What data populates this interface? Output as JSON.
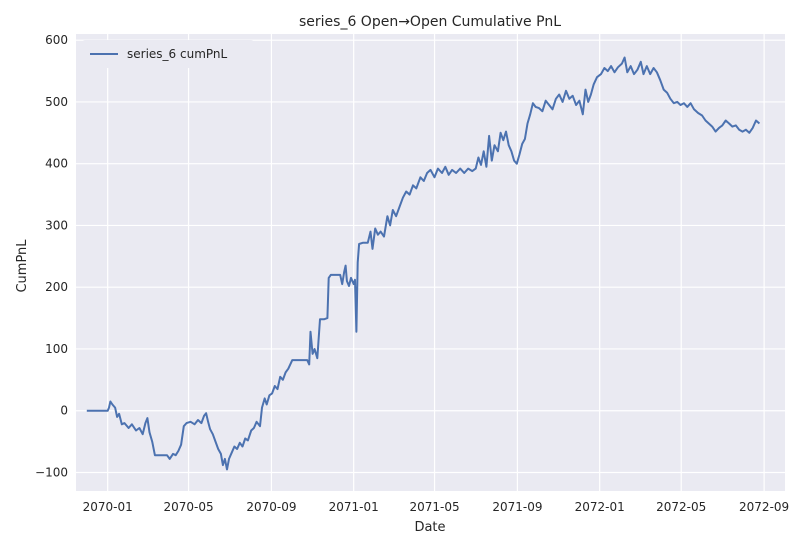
{
  "chart_data": {
    "type": "line",
    "title": "series_6 Open→Open Cumulative PnL",
    "xlabel": "Date",
    "ylabel": "CumPnL",
    "xlim": [
      "2069-11-15",
      "2072-10-02"
    ],
    "ylim": [
      -130,
      610
    ],
    "x_ticks": [
      "2070-01",
      "2070-05",
      "2070-09",
      "2071-01",
      "2071-05",
      "2071-09",
      "2072-01",
      "2072-05",
      "2072-09"
    ],
    "y_ticks": [
      -100,
      0,
      100,
      200,
      300,
      400,
      500,
      600
    ],
    "grid": true,
    "legend": "upper-left",
    "background": "#eaeaf2",
    "series": [
      {
        "name": "series_6 cumPnL",
        "color": "#4c72b0",
        "points": [
          [
            "2069-12-01",
            0
          ],
          [
            "2069-12-20",
            0
          ],
          [
            "2070-01-01",
            0
          ],
          [
            "2070-01-03",
            5
          ],
          [
            "2070-01-05",
            15
          ],
          [
            "2070-01-08",
            10
          ],
          [
            "2070-01-12",
            5
          ],
          [
            "2070-01-15",
            -10
          ],
          [
            "2070-01-18",
            -5
          ],
          [
            "2070-01-22",
            -22
          ],
          [
            "2070-01-26",
            -20
          ],
          [
            "2070-02-01",
            -28
          ],
          [
            "2070-02-06",
            -22
          ],
          [
            "2070-02-12",
            -32
          ],
          [
            "2070-02-17",
            -28
          ],
          [
            "2070-02-22",
            -38
          ],
          [
            "2070-02-26",
            -20
          ],
          [
            "2070-03-01",
            -12
          ],
          [
            "2070-03-04",
            -35
          ],
          [
            "2070-03-08",
            -50
          ],
          [
            "2070-03-12",
            -72
          ],
          [
            "2070-03-20",
            -72
          ],
          [
            "2070-03-30",
            -72
          ],
          [
            "2070-04-03",
            -78
          ],
          [
            "2070-04-08",
            -70
          ],
          [
            "2070-04-12",
            -72
          ],
          [
            "2070-04-16",
            -65
          ],
          [
            "2070-04-20",
            -55
          ],
          [
            "2070-04-24",
            -25
          ],
          [
            "2070-04-28",
            -20
          ],
          [
            "2070-05-04",
            -18
          ],
          [
            "2070-05-10",
            -22
          ],
          [
            "2070-05-15",
            -15
          ],
          [
            "2070-05-20",
            -20
          ],
          [
            "2070-05-24",
            -8
          ],
          [
            "2070-05-27",
            -4
          ],
          [
            "2070-05-30",
            -18
          ],
          [
            "2070-06-02",
            -30
          ],
          [
            "2070-06-06",
            -38
          ],
          [
            "2070-06-10",
            -50
          ],
          [
            "2070-06-14",
            -62
          ],
          [
            "2070-06-18",
            -70
          ],
          [
            "2070-06-21",
            -88
          ],
          [
            "2070-06-24",
            -78
          ],
          [
            "2070-06-27",
            -95
          ],
          [
            "2070-06-30",
            -78
          ],
          [
            "2070-07-04",
            -68
          ],
          [
            "2070-07-08",
            -58
          ],
          [
            "2070-07-12",
            -62
          ],
          [
            "2070-07-16",
            -52
          ],
          [
            "2070-07-20",
            -58
          ],
          [
            "2070-07-24",
            -45
          ],
          [
            "2070-07-28",
            -48
          ],
          [
            "2070-08-02",
            -32
          ],
          [
            "2070-08-06",
            -28
          ],
          [
            "2070-08-10",
            -18
          ],
          [
            "2070-08-15",
            -25
          ],
          [
            "2070-08-18",
            5
          ],
          [
            "2070-08-22",
            20
          ],
          [
            "2070-08-25",
            10
          ],
          [
            "2070-08-29",
            25
          ],
          [
            "2070-09-02",
            28
          ],
          [
            "2070-09-06",
            40
          ],
          [
            "2070-09-10",
            35
          ],
          [
            "2070-09-14",
            55
          ],
          [
            "2070-09-18",
            50
          ],
          [
            "2070-09-22",
            62
          ],
          [
            "2070-09-26",
            68
          ],
          [
            "2070-10-02",
            82
          ],
          [
            "2070-10-10",
            82
          ],
          [
            "2070-10-18",
            82
          ],
          [
            "2070-10-24",
            82
          ],
          [
            "2070-10-27",
            75
          ],
          [
            "2070-10-29",
            128
          ],
          [
            "2070-11-01",
            92
          ],
          [
            "2070-11-04",
            100
          ],
          [
            "2070-11-08",
            85
          ],
          [
            "2070-11-12",
            148
          ],
          [
            "2070-11-18",
            148
          ],
          [
            "2070-11-23",
            150
          ],
          [
            "2070-11-25",
            215
          ],
          [
            "2070-11-28",
            220
          ],
          [
            "2070-12-05",
            220
          ],
          [
            "2070-12-12",
            220
          ],
          [
            "2070-12-15",
            205
          ],
          [
            "2070-12-18",
            225
          ],
          [
            "2070-12-20",
            235
          ],
          [
            "2070-12-22",
            210
          ],
          [
            "2070-12-25",
            202
          ],
          [
            "2070-12-28",
            215
          ],
          [
            "2071-01-01",
            205
          ],
          [
            "2071-01-03",
            212
          ],
          [
            "2071-01-05",
            128
          ],
          [
            "2071-01-07",
            240
          ],
          [
            "2071-01-09",
            270
          ],
          [
            "2071-01-15",
            272
          ],
          [
            "2071-01-22",
            272
          ],
          [
            "2071-01-26",
            290
          ],
          [
            "2071-01-29",
            262
          ],
          [
            "2071-02-02",
            295
          ],
          [
            "2071-02-06",
            285
          ],
          [
            "2071-02-10",
            290
          ],
          [
            "2071-02-15",
            282
          ],
          [
            "2071-02-20",
            315
          ],
          [
            "2071-02-24",
            300
          ],
          [
            "2071-02-28",
            325
          ],
          [
            "2071-03-05",
            315
          ],
          [
            "2071-03-10",
            330
          ],
          [
            "2071-03-15",
            345
          ],
          [
            "2071-03-20",
            355
          ],
          [
            "2071-03-25",
            350
          ],
          [
            "2071-03-30",
            365
          ],
          [
            "2071-04-04",
            360
          ],
          [
            "2071-04-10",
            378
          ],
          [
            "2071-04-15",
            372
          ],
          [
            "2071-04-20",
            385
          ],
          [
            "2071-04-25",
            390
          ],
          [
            "2071-05-01",
            378
          ],
          [
            "2071-05-06",
            392
          ],
          [
            "2071-05-12",
            385
          ],
          [
            "2071-05-17",
            395
          ],
          [
            "2071-05-22",
            382
          ],
          [
            "2071-05-27",
            390
          ],
          [
            "2071-06-02",
            385
          ],
          [
            "2071-06-08",
            392
          ],
          [
            "2071-06-14",
            385
          ],
          [
            "2071-06-20",
            392
          ],
          [
            "2071-06-26",
            388
          ],
          [
            "2071-07-01",
            392
          ],
          [
            "2071-07-05",
            410
          ],
          [
            "2071-07-09",
            398
          ],
          [
            "2071-07-13",
            420
          ],
          [
            "2071-07-17",
            395
          ],
          [
            "2071-07-21",
            445
          ],
          [
            "2071-07-25",
            405
          ],
          [
            "2071-07-29",
            430
          ],
          [
            "2071-08-03",
            420
          ],
          [
            "2071-08-07",
            450
          ],
          [
            "2071-08-11",
            438
          ],
          [
            "2071-08-15",
            452
          ],
          [
            "2071-08-19",
            430
          ],
          [
            "2071-08-23",
            420
          ],
          [
            "2071-08-27",
            405
          ],
          [
            "2071-08-31",
            400
          ],
          [
            "2071-09-04",
            415
          ],
          [
            "2071-09-08",
            432
          ],
          [
            "2071-09-12",
            440
          ],
          [
            "2071-09-16",
            465
          ],
          [
            "2071-09-20",
            480
          ],
          [
            "2071-09-24",
            498
          ],
          [
            "2071-09-28",
            492
          ],
          [
            "2071-10-03",
            490
          ],
          [
            "2071-10-08",
            485
          ],
          [
            "2071-10-13",
            502
          ],
          [
            "2071-10-18",
            495
          ],
          [
            "2071-10-23",
            488
          ],
          [
            "2071-10-28",
            505
          ],
          [
            "2071-11-02",
            512
          ],
          [
            "2071-11-07",
            500
          ],
          [
            "2071-11-12",
            518
          ],
          [
            "2071-11-17",
            505
          ],
          [
            "2071-11-22",
            510
          ],
          [
            "2071-11-27",
            495
          ],
          [
            "2071-12-02",
            502
          ],
          [
            "2071-12-07",
            480
          ],
          [
            "2071-12-11",
            520
          ],
          [
            "2071-12-15",
            500
          ],
          [
            "2071-12-19",
            512
          ],
          [
            "2071-12-23",
            528
          ],
          [
            "2071-12-28",
            540
          ],
          [
            "2072-01-03",
            545
          ],
          [
            "2072-01-08",
            555
          ],
          [
            "2072-01-13",
            550
          ],
          [
            "2072-01-18",
            558
          ],
          [
            "2072-01-23",
            548
          ],
          [
            "2072-01-28",
            556
          ],
          [
            "2072-02-03",
            562
          ],
          [
            "2072-02-07",
            572
          ],
          [
            "2072-02-11",
            548
          ],
          [
            "2072-02-16",
            558
          ],
          [
            "2072-02-21",
            545
          ],
          [
            "2072-02-26",
            552
          ],
          [
            "2072-03-02",
            565
          ],
          [
            "2072-03-06",
            545
          ],
          [
            "2072-03-11",
            558
          ],
          [
            "2072-03-16",
            545
          ],
          [
            "2072-03-21",
            555
          ],
          [
            "2072-03-26",
            548
          ],
          [
            "2072-03-31",
            535
          ],
          [
            "2072-04-05",
            520
          ],
          [
            "2072-04-10",
            515
          ],
          [
            "2072-04-15",
            505
          ],
          [
            "2072-04-20",
            498
          ],
          [
            "2072-04-25",
            500
          ],
          [
            "2072-04-30",
            495
          ],
          [
            "2072-05-05",
            498
          ],
          [
            "2072-05-10",
            492
          ],
          [
            "2072-05-15",
            498
          ],
          [
            "2072-05-20",
            488
          ],
          [
            "2072-05-26",
            482
          ],
          [
            "2072-06-01",
            478
          ],
          [
            "2072-06-06",
            470
          ],
          [
            "2072-06-11",
            465
          ],
          [
            "2072-06-16",
            460
          ],
          [
            "2072-06-21",
            452
          ],
          [
            "2072-06-26",
            458
          ],
          [
            "2072-07-01",
            462
          ],
          [
            "2072-07-06",
            470
          ],
          [
            "2072-07-11",
            465
          ],
          [
            "2072-07-16",
            460
          ],
          [
            "2072-07-21",
            462
          ],
          [
            "2072-07-26",
            455
          ],
          [
            "2072-07-31",
            452
          ],
          [
            "2072-08-05",
            455
          ],
          [
            "2072-08-10",
            450
          ],
          [
            "2072-08-15",
            458
          ],
          [
            "2072-08-20",
            470
          ],
          [
            "2072-08-25",
            465
          ]
        ]
      }
    ]
  }
}
